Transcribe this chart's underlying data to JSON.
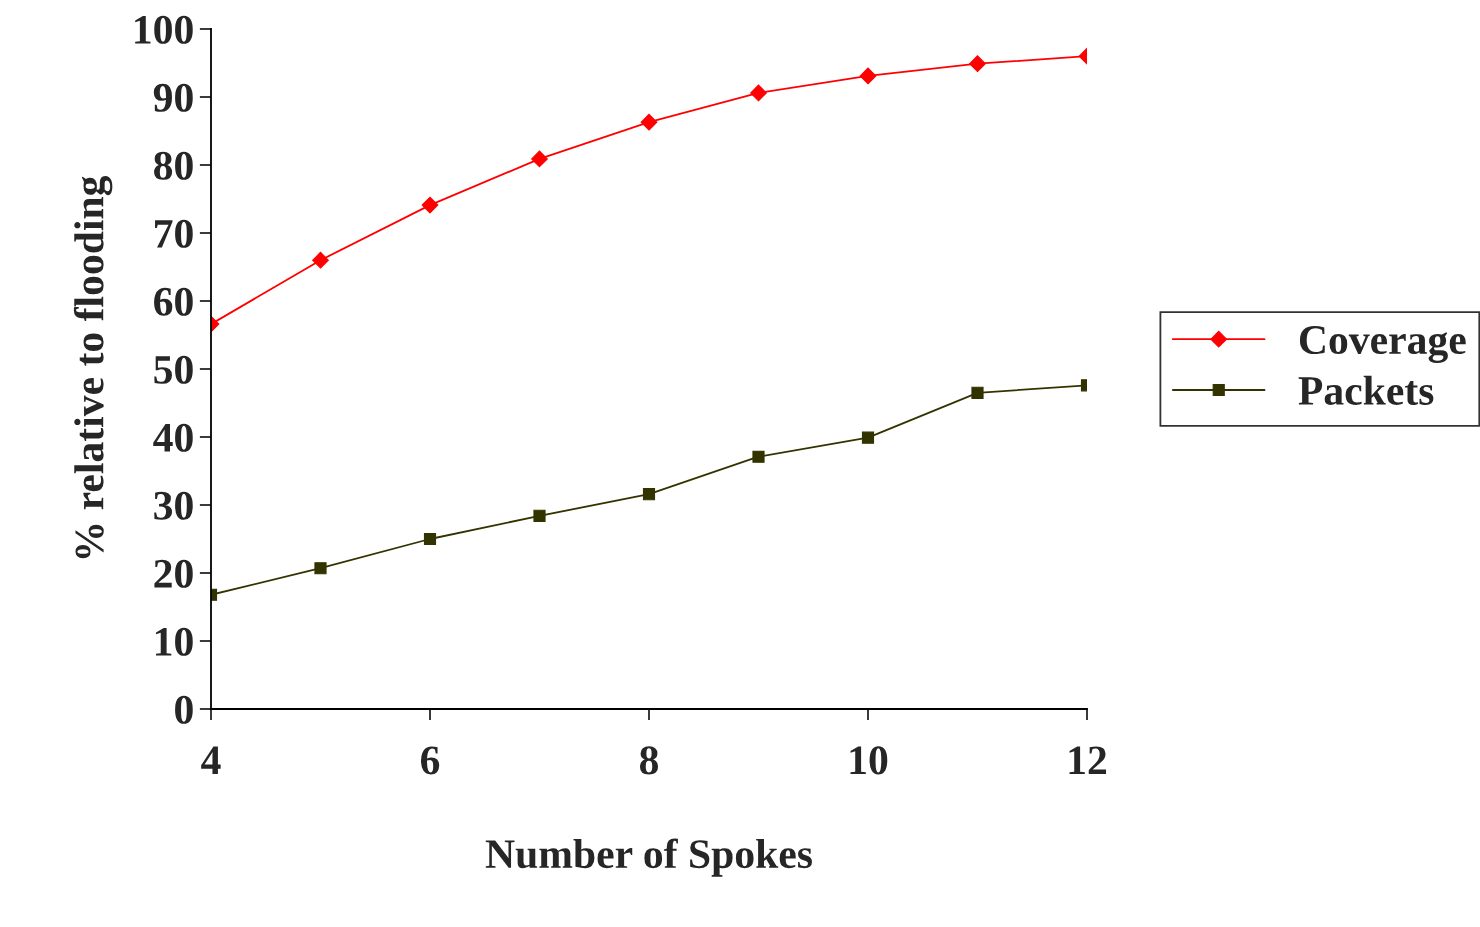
{
  "chart_data": {
    "type": "line",
    "xlabel": "Number of Spokes",
    "ylabel": "% relative to flooding",
    "x": [
      4,
      5,
      6,
      7,
      8,
      9,
      10,
      11,
      12
    ],
    "series": [
      {
        "name": "Coverage",
        "color": "#ff0000",
        "marker": "diamond",
        "values": [
          56.6,
          66.0,
          74.1,
          80.9,
          86.3,
          90.6,
          93.1,
          94.9,
          96.0
        ]
      },
      {
        "name": "Packets",
        "color": "#333300",
        "marker": "square",
        "values": [
          16.8,
          20.7,
          25.0,
          28.4,
          31.6,
          37.1,
          39.9,
          46.5,
          47.6
        ]
      }
    ],
    "xlim": [
      4,
      12
    ],
    "xticks": [
      4,
      6,
      8,
      10,
      12
    ],
    "ylim": [
      0,
      100
    ],
    "yticks": [
      0,
      10,
      20,
      30,
      40,
      50,
      60,
      70,
      80,
      90,
      100
    ],
    "grid": false,
    "legend": "right",
    "line_style": "solid"
  }
}
